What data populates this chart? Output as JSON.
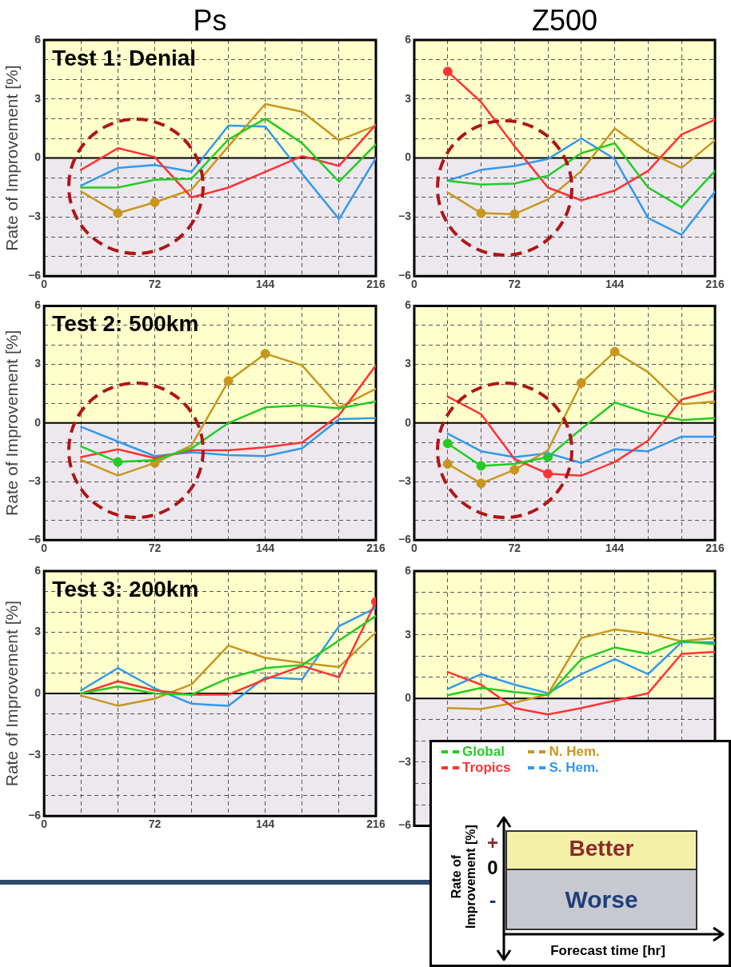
{
  "chart_data": [
    {
      "type": "line",
      "title": "Ps",
      "ylabel": "Rate of Improvement [%]",
      "annotations": [
        "Test 1: Denial"
      ],
      "x": [
        24,
        48,
        72,
        96,
        120,
        144,
        168,
        192,
        216
      ],
      "xlim": [
        0,
        216
      ],
      "xticks": [
        0,
        {
          "value": 24,
          "label": null
        },
        {
          "value": 48,
          "label": null
        },
        72,
        {
          "value": 96,
          "label": null
        },
        {
          "value": 120,
          "label": null
        },
        144,
        {
          "value": 168,
          "label": null
        },
        {
          "value": 192,
          "label": null
        },
        216
      ],
      "ylim": [
        -6,
        6
      ],
      "yticks": [
        -6,
        {
          "value": -5,
          "label": null
        },
        {
          "value": -4,
          "label": null
        },
        -3,
        {
          "value": -2,
          "label": null
        },
        {
          "value": -1,
          "label": null
        },
        0,
        {
          "value": 1,
          "label": null
        },
        {
          "value": 2,
          "label": null
        },
        3,
        {
          "value": 4,
          "label": null
        },
        {
          "value": 5,
          "label": null
        },
        6
      ],
      "grid": true,
      "bands": [
        {
          "axis": "y",
          "from": 0,
          "to": 6,
          "color": "#ffffcc"
        },
        {
          "axis": "y",
          "from": -6,
          "to": 0,
          "color": "#ece8ee"
        }
      ],
      "ref_lines": [
        {
          "axis": "y",
          "value": 0,
          "color": "#000000"
        }
      ],
      "series": [
        {
          "color": "#22cc22",
          "values": [
            -1.5,
            -1.5,
            -1.1,
            -1.05,
            0.95,
            2.0,
            0.75,
            -1.2,
            0.7
          ]
        },
        {
          "color": "#ff3333",
          "values": [
            -0.6,
            0.5,
            0.05,
            -2.0,
            -1.5,
            -0.7,
            0.1,
            -0.4,
            1.7
          ]
        },
        {
          "color": "#c8961e",
          "values": [
            -1.7,
            -2.8,
            -2.25,
            -1.6,
            0.6,
            2.75,
            2.35,
            0.9,
            1.65
          ]
        },
        {
          "color": "#3399ee",
          "values": [
            -1.4,
            -0.5,
            -0.35,
            -0.7,
            1.65,
            1.6,
            -0.8,
            -3.1,
            0
          ]
        },
        {
          "type": "scatter",
          "color": "#c8961e",
          "marker": "circle",
          "x": [
            48,
            72
          ],
          "values": [
            -2.8,
            -2.25
          ]
        }
      ]
    },
    {
      "type": "line",
      "title": "Z500",
      "x": [
        24,
        48,
        72,
        96,
        120,
        144,
        168,
        192,
        216
      ],
      "xlim": [
        0,
        216
      ],
      "xticks": [
        0,
        {
          "value": 24,
          "label": null
        },
        {
          "value": 48,
          "label": null
        },
        72,
        {
          "value": 96,
          "label": null
        },
        {
          "value": 120,
          "label": null
        },
        144,
        {
          "value": 168,
          "label": null
        },
        {
          "value": 192,
          "label": null
        },
        216
      ],
      "ylim": [
        -6,
        6
      ],
      "yticks": [
        -6,
        {
          "value": -5,
          "label": null
        },
        {
          "value": -4,
          "label": null
        },
        -3,
        {
          "value": -2,
          "label": null
        },
        {
          "value": -1,
          "label": null
        },
        0,
        {
          "value": 1,
          "label": null
        },
        {
          "value": 2,
          "label": null
        },
        3,
        {
          "value": 4,
          "label": null
        },
        {
          "value": 5,
          "label": null
        },
        6
      ],
      "grid": true,
      "bands": [
        {
          "axis": "y",
          "from": 0,
          "to": 6,
          "color": "#ffffcc"
        },
        {
          "axis": "y",
          "from": -6,
          "to": 0,
          "color": "#ece8ee"
        }
      ],
      "ref_lines": [
        {
          "axis": "y",
          "value": 0,
          "color": "#000000"
        }
      ],
      "series": [
        {
          "color": "#22cc22",
          "values": [
            -1.15,
            -1.35,
            -1.3,
            -0.9,
            0.25,
            0.75,
            -1.5,
            -2.5,
            -0.65
          ]
        },
        {
          "color": "#ff3333",
          "values": [
            4.4,
            2.85,
            0.6,
            -1.5,
            -2.15,
            -1.65,
            -0.65,
            1.2,
            1.95
          ]
        },
        {
          "color": "#c8961e",
          "values": [
            -1.75,
            -2.8,
            -2.85,
            -2.1,
            -0.65,
            1.5,
            0.3,
            -0.5,
            0.9
          ]
        },
        {
          "color": "#3399ee",
          "values": [
            -1.15,
            -0.6,
            -0.4,
            -0.05,
            1.0,
            -0.05,
            -3.05,
            -3.9,
            -1.7
          ]
        },
        {
          "type": "scatter",
          "color": "#ff3333",
          "marker": "circle",
          "x": [
            24
          ],
          "values": [
            4.4
          ]
        },
        {
          "type": "scatter",
          "color": "#c8961e",
          "marker": "circle",
          "x": [
            48,
            72
          ],
          "values": [
            -2.8,
            -2.85
          ]
        }
      ]
    },
    {
      "type": "line",
      "ylabel": "Rate of Improvement [%]",
      "annotations": [
        "Test 2: 500km"
      ],
      "x": [
        24,
        48,
        72,
        96,
        120,
        144,
        168,
        192,
        216
      ],
      "xlim": [
        0,
        216
      ],
      "xticks": [
        0,
        {
          "value": 24,
          "label": null
        },
        {
          "value": 48,
          "label": null
        },
        72,
        {
          "value": 96,
          "label": null
        },
        {
          "value": 120,
          "label": null
        },
        144,
        {
          "value": 168,
          "label": null
        },
        {
          "value": 192,
          "label": null
        },
        216
      ],
      "ylim": [
        -6,
        6
      ],
      "yticks": [
        -6,
        {
          "value": -5,
          "label": null
        },
        {
          "value": -4,
          "label": null
        },
        -3,
        {
          "value": -2,
          "label": null
        },
        {
          "value": -1,
          "label": null
        },
        0,
        {
          "value": 1,
          "label": null
        },
        {
          "value": 2,
          "label": null
        },
        3,
        {
          "value": 4,
          "label": null
        },
        {
          "value": 5,
          "label": null
        },
        6
      ],
      "grid": true,
      "bands": [
        {
          "axis": "y",
          "from": 0,
          "to": 6,
          "color": "#ffffcc"
        },
        {
          "axis": "y",
          "from": -6,
          "to": 0,
          "color": "#ece8ee"
        }
      ],
      "ref_lines": [
        {
          "axis": "y",
          "value": 0,
          "color": "#000000"
        }
      ],
      "series": [
        {
          "color": "#22cc22",
          "values": [
            -1.2,
            -2.0,
            -1.9,
            -1.3,
            0,
            0.8,
            0.9,
            0.75,
            1.1
          ]
        },
        {
          "color": "#ff3333",
          "values": [
            -1.75,
            -1.35,
            -1.8,
            -1.4,
            -1.4,
            -1.25,
            -1.0,
            0.4,
            2.95
          ]
        },
        {
          "color": "#c8961e",
          "values": [
            -1.9,
            -2.7,
            -2.05,
            -1.15,
            2.15,
            3.55,
            2.95,
            0.8,
            1.75
          ]
        },
        {
          "color": "#3399ee",
          "values": [
            -0.2,
            -0.95,
            -1.7,
            -1.5,
            -1.65,
            -1.7,
            -1.3,
            0.2,
            0.25
          ]
        },
        {
          "type": "scatter",
          "color": "#22cc22",
          "marker": "circle",
          "x": [
            48
          ],
          "values": [
            -2.0
          ]
        },
        {
          "type": "scatter",
          "color": "#c8961e",
          "marker": "circle",
          "x": [
            72,
            120,
            144
          ],
          "values": [
            -2.05,
            2.15,
            3.55
          ]
        }
      ]
    },
    {
      "type": "line",
      "x": [
        24,
        48,
        72,
        96,
        120,
        144,
        168,
        192,
        216
      ],
      "xlim": [
        0,
        216
      ],
      "xticks": [
        0,
        {
          "value": 24,
          "label": null
        },
        {
          "value": 48,
          "label": null
        },
        72,
        {
          "value": 96,
          "label": null
        },
        {
          "value": 120,
          "label": null
        },
        144,
        {
          "value": 168,
          "label": null
        },
        {
          "value": 192,
          "label": null
        },
        216
      ],
      "ylim": [
        -6,
        6
      ],
      "yticks": [
        -6,
        {
          "value": -5,
          "label": null
        },
        {
          "value": -4,
          "label": null
        },
        -3,
        {
          "value": -2,
          "label": null
        },
        {
          "value": -1,
          "label": null
        },
        0,
        {
          "value": 1,
          "label": null
        },
        {
          "value": 2,
          "label": null
        },
        3,
        {
          "value": 4,
          "label": null
        },
        {
          "value": 5,
          "label": null
        },
        6
      ],
      "grid": true,
      "bands": [
        {
          "axis": "y",
          "from": 0,
          "to": 6,
          "color": "#ffffcc"
        },
        {
          "axis": "y",
          "from": -6,
          "to": 0,
          "color": "#ece8ee"
        }
      ],
      "ref_lines": [
        {
          "axis": "y",
          "value": 0,
          "color": "#000000"
        }
      ],
      "series": [
        {
          "color": "#22cc22",
          "values": [
            -1.05,
            -2.2,
            -2.1,
            -1.75,
            -0.3,
            1.05,
            0.5,
            0.15,
            0.25
          ]
        },
        {
          "color": "#ff3333",
          "values": [
            1.35,
            0.45,
            -1.85,
            -2.6,
            -2.7,
            -2.0,
            -0.9,
            1.2,
            1.65
          ]
        },
        {
          "color": "#c8961e",
          "values": [
            -2.1,
            -3.1,
            -2.4,
            -1.4,
            2.05,
            3.65,
            2.6,
            0.95,
            1.1
          ]
        },
        {
          "color": "#3399ee",
          "values": [
            -0.55,
            -1.45,
            -1.75,
            -1.55,
            -2.05,
            -1.35,
            -1.45,
            -0.7,
            -0.7
          ]
        },
        {
          "type": "scatter",
          "color": "#22cc22",
          "marker": "circle",
          "x": [
            24,
            48,
            96
          ],
          "values": [
            -1.05,
            -2.2,
            -1.75
          ]
        },
        {
          "type": "scatter",
          "color": "#ff3333",
          "marker": "circle",
          "x": [
            96
          ],
          "values": [
            -2.6
          ]
        },
        {
          "type": "scatter",
          "color": "#c8961e",
          "marker": "circle",
          "x": [
            24,
            48,
            72,
            120,
            144
          ],
          "values": [
            -2.1,
            -3.1,
            -2.4,
            2.05,
            3.65
          ]
        }
      ]
    },
    {
      "type": "line",
      "ylabel": "Rate of Improvement [%]",
      "annotations": [
        "Test 3: 200km"
      ],
      "x": [
        24,
        48,
        72,
        96,
        120,
        144,
        168,
        192,
        216
      ],
      "xlim": [
        0,
        216
      ],
      "xticks": [
        0,
        {
          "value": 24,
          "label": null
        },
        {
          "value": 48,
          "label": null
        },
        72,
        {
          "value": 96,
          "label": null
        },
        {
          "value": 120,
          "label": null
        },
        144,
        {
          "value": 168,
          "label": null
        },
        {
          "value": 192,
          "label": null
        },
        216
      ],
      "ylim": [
        -6,
        6
      ],
      "yticks": [
        -6,
        {
          "value": -5,
          "label": null
        },
        {
          "value": -4,
          "label": null
        },
        -3,
        {
          "value": -2,
          "label": null
        },
        {
          "value": -1,
          "label": null
        },
        0,
        {
          "value": 1,
          "label": null
        },
        {
          "value": 2,
          "label": null
        },
        3,
        {
          "value": 4,
          "label": null
        },
        {
          "value": 5,
          "label": null
        },
        6
      ],
      "grid": true,
      "bands": [
        {
          "axis": "y",
          "from": 0,
          "to": 6,
          "color": "#ffffcc"
        },
        {
          "axis": "y",
          "from": -6,
          "to": 0,
          "color": "#ece8ee"
        }
      ],
      "ref_lines": [
        {
          "axis": "y",
          "value": 0,
          "color": "#000000"
        }
      ],
      "series": [
        {
          "color": "#22cc22",
          "values": [
            0,
            0.35,
            0,
            -0.05,
            0.75,
            1.25,
            1.4,
            2.6,
            3.8
          ]
        },
        {
          "color": "#ff3333",
          "values": [
            0,
            0.6,
            0.15,
            -0.05,
            -0.05,
            0.7,
            1.35,
            0.8,
            4.5
          ]
        },
        {
          "color": "#c8961e",
          "values": [
            -0.1,
            -0.6,
            -0.25,
            0.45,
            2.35,
            1.75,
            1.5,
            1.3,
            3.0
          ]
        },
        {
          "color": "#3399ee",
          "values": [
            0.15,
            1.25,
            0.25,
            -0.5,
            -0.6,
            0.8,
            0.7,
            3.3,
            4.2
          ]
        },
        {
          "type": "scatter",
          "color": "#ff3333",
          "marker": "circle",
          "x": [
            216
          ],
          "values": [
            4.5
          ]
        }
      ]
    },
    {
      "type": "line",
      "legend": "bottom left",
      "tick_labels": "y",
      "x": [
        24,
        48,
        72,
        96,
        120,
        144,
        168,
        192,
        216
      ],
      "xlim": [
        0,
        216
      ],
      "xticks": [
        0,
        {
          "value": 24,
          "label": null
        },
        {
          "value": 48,
          "label": null
        },
        72,
        {
          "value": 96,
          "label": null
        },
        {
          "value": 120,
          "label": null
        },
        144,
        {
          "value": 168,
          "label": null
        },
        {
          "value": 192,
          "label": null
        },
        216
      ],
      "ylim": [
        -6,
        6
      ],
      "yticks": [
        -6,
        {
          "value": -5,
          "label": null
        },
        {
          "value": -4,
          "label": null
        },
        -3,
        {
          "value": -2,
          "label": null
        },
        {
          "value": -1,
          "label": null
        },
        0,
        {
          "value": 1,
          "label": null
        },
        {
          "value": 2,
          "label": null
        },
        3,
        {
          "value": 4,
          "label": null
        },
        {
          "value": 5,
          "label": null
        },
        6
      ],
      "grid": true,
      "bands": [
        {
          "axis": "y",
          "from": 0,
          "to": 6,
          "color": "#ffffcc"
        },
        {
          "axis": "y",
          "from": -6,
          "to": 0,
          "color": "#ece8ee"
        }
      ],
      "ref_lines": [
        {
          "axis": "y",
          "value": 0,
          "color": "#000000"
        }
      ],
      "series": [
        {
          "name": "Global",
          "color": "#22cc22",
          "values": [
            0.15,
            0.5,
            0.3,
            0.15,
            1.85,
            2.4,
            2.1,
            2.7,
            2.55
          ]
        },
        {
          "name": "Tropics",
          "color": "#ff3333",
          "values": [
            1.25,
            0.65,
            -0.45,
            -0.75,
            -0.45,
            -0.1,
            0.25,
            2.1,
            2.2
          ]
        },
        {
          "name": "N. Hem.",
          "color": "#c8961e",
          "values": [
            -0.45,
            -0.5,
            -0.2,
            0.2,
            2.85,
            3.25,
            3.05,
            2.7,
            2.85
          ]
        },
        {
          "name": "S. Hem.",
          "color": "#3399ee",
          "values": [
            0.45,
            1.15,
            0.65,
            0.25,
            1.15,
            1.85,
            1.15,
            2.65,
            2.65
          ]
        }
      ]
    },
    {
      "type": "other",
      "ylabel": "Rate of Improvement [%]",
      "xlabel": "Forecast time [hr]",
      "annotations": [
        "+",
        "0",
        "-",
        "Better",
        "Worse"
      ]
    }
  ]
}
